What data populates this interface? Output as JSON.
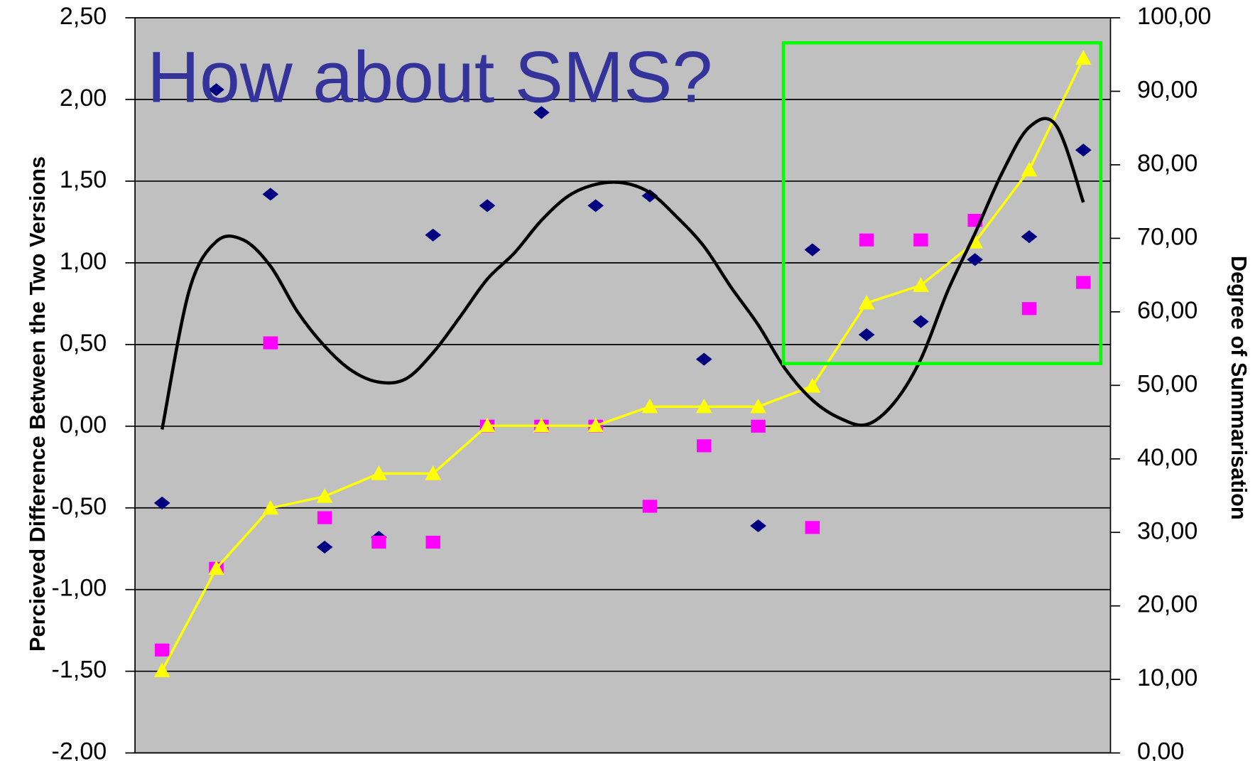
{
  "chart_data": {
    "type": "combo",
    "title": "How about SMS?",
    "y_label": "Percieved Difference Between the Two Versions",
    "y2_label": "Degree of Summarisation",
    "background": "#c0c0c0",
    "grid": true,
    "xlim": [
      0.5,
      18.5
    ],
    "ylim": [
      -2,
      2.5
    ],
    "yticks": [
      {
        "value": -2,
        "label": "-2,00"
      },
      {
        "value": -1.5,
        "label": "-1,50"
      },
      {
        "value": -1,
        "label": "-1,00"
      },
      {
        "value": -0.5,
        "label": "-0,50"
      },
      {
        "value": 0,
        "label": "0,00"
      },
      {
        "value": 0.5,
        "label": "0,50"
      },
      {
        "value": 1,
        "label": "1,00"
      },
      {
        "value": 1.5,
        "label": "1,50"
      },
      {
        "value": 2,
        "label": "2,00"
      },
      {
        "value": 2.5,
        "label": "2,50"
      }
    ],
    "y2lim": [
      0,
      100
    ],
    "y2ticks": [
      {
        "value": 0,
        "label": "0,00"
      },
      {
        "value": 10,
        "label": "10,00"
      },
      {
        "value": 20,
        "label": "20,00"
      },
      {
        "value": 30,
        "label": "30,00"
      },
      {
        "value": 40,
        "label": "40,00"
      },
      {
        "value": 50,
        "label": "50,00"
      },
      {
        "value": 60,
        "label": "60,00"
      },
      {
        "value": 70,
        "label": "70,00"
      },
      {
        "value": 80,
        "label": "80,00"
      },
      {
        "value": 90,
        "label": "90,00"
      },
      {
        "value": 100,
        "label": "100,00"
      }
    ],
    "series": [
      {
        "type": "scatter",
        "marker": "diamond",
        "color": "#000080",
        "x": [
          1,
          2,
          3,
          4,
          5,
          6,
          7,
          8,
          9,
          10,
          11,
          12,
          13,
          14,
          15,
          16,
          17,
          18
        ],
        "values": [
          -0.47,
          2.06,
          1.42,
          -0.74,
          -0.68,
          1.17,
          1.35,
          1.92,
          1.35,
          1.41,
          0.41,
          -0.61,
          1.08,
          0.56,
          0.64,
          1.02,
          1.16,
          1.69
        ]
      },
      {
        "type": "scatter",
        "marker": "square",
        "color": "#ff00ff",
        "x": [
          1,
          2,
          3,
          4,
          5,
          6,
          7,
          8,
          9,
          10,
          11,
          12,
          13,
          14,
          15,
          16,
          17,
          18
        ],
        "values": [
          -1.37,
          -0.87,
          0.51,
          -0.56,
          -0.71,
          -0.71,
          0,
          0,
          0,
          -0.49,
          -0.12,
          0,
          -0.62,
          1.14,
          1.14,
          1.26,
          0.72,
          0.88
        ]
      },
      {
        "type": "line",
        "marker": "triangle",
        "color": "#ffff00",
        "axis": "y2",
        "x": [
          1,
          2,
          3,
          4,
          5,
          6,
          7,
          8,
          9,
          10,
          11,
          12,
          13,
          14,
          15,
          16,
          17,
          18
        ],
        "values": [
          11.2,
          25.1,
          33.3,
          34.9,
          38,
          38,
          44.5,
          44.5,
          44.5,
          47.1,
          47.1,
          47.1,
          49.9,
          61.2,
          63.6,
          69.5,
          79.3,
          94.5
        ]
      },
      {
        "type": "trend",
        "color": "#000000",
        "x": [
          1,
          1.5,
          2,
          2.5,
          3,
          3.5,
          4,
          4.5,
          5,
          5.5,
          6,
          6.5,
          7,
          7.5,
          8,
          8.5,
          9,
          9.5,
          10,
          10.5,
          11,
          11.5,
          12,
          12.5,
          13,
          13.5,
          14,
          14.5,
          15,
          15.5,
          16,
          16.5,
          17,
          17.5,
          18
        ],
        "values": [
          -0.02,
          0.83,
          1.13,
          1.14,
          0.98,
          0.7,
          0.49,
          0.34,
          0.27,
          0.29,
          0.45,
          0.67,
          0.9,
          1.06,
          1.26,
          1.41,
          1.48,
          1.49,
          1.43,
          1.28,
          1.1,
          0.85,
          0.62,
          0.35,
          0.16,
          0.05,
          0.01,
          0.14,
          0.41,
          0.83,
          1.18,
          1.55,
          1.83,
          1.84,
          1.37
        ]
      }
    ]
  }
}
